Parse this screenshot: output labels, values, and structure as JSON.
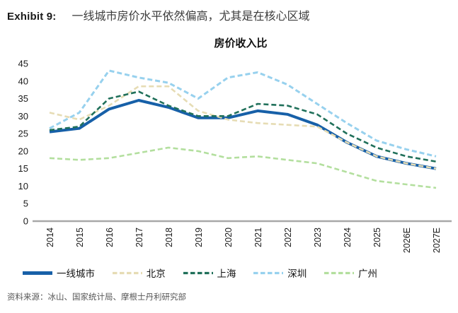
{
  "header": {
    "exhibit_label": "Exhibit 9:",
    "title": "一线城市房价水平依然偏高，尤其是在核心区域"
  },
  "source": "资料来源：冰山、国家统计局、摩根士丹利研究部",
  "chart_data": {
    "type": "line",
    "title": "房价收入比",
    "categories": [
      "2014",
      "2015",
      "2016",
      "2017",
      "2018",
      "2019",
      "2020",
      "2021",
      "2022",
      "2023",
      "2024",
      "2025",
      "2026E",
      "2027E"
    ],
    "series": [
      {
        "key": "tier1",
        "name": "一线城市",
        "color": "#1760a8",
        "style": "solid",
        "width": 4,
        "values": [
          25.5,
          26.5,
          32,
          34.5,
          32.5,
          29.5,
          29.5,
          31.5,
          30.5,
          27.5,
          22.5,
          18.5,
          16.5,
          15
        ]
      },
      {
        "key": "beijing",
        "name": "北京",
        "color": "#e6dcb4",
        "style": "dashed",
        "width": 2.6,
        "values": [
          31,
          29,
          33,
          38.5,
          38.5,
          31.5,
          29,
          28,
          27.5,
          27,
          22.5,
          18.5,
          16.5,
          15
        ]
      },
      {
        "key": "shanghai",
        "name": "上海",
        "color": "#20705a",
        "style": "dashed",
        "width": 2.6,
        "values": [
          26,
          27,
          35,
          37,
          33,
          30,
          30,
          33.5,
          33,
          30.5,
          25,
          21,
          18.5,
          17
        ]
      },
      {
        "key": "shenzhen",
        "name": "深圳",
        "color": "#97d1ee",
        "style": "dashed",
        "width": 3,
        "values": [
          26.5,
          31,
          43,
          41,
          39.5,
          35,
          41,
          42.5,
          39,
          33.5,
          28,
          23,
          20.5,
          18.5
        ]
      },
      {
        "key": "guangzhou",
        "name": "广州",
        "color": "#b3df9e",
        "style": "dashed",
        "width": 2.6,
        "values": [
          18,
          17.5,
          18,
          19.5,
          21,
          20,
          18,
          18.5,
          17.5,
          16.5,
          14,
          11.5,
          10.5,
          9.5
        ]
      }
    ],
    "ylim": [
      0,
      45
    ],
    "ytick_step": 5,
    "grid": false,
    "legend_position": "bottom",
    "axis_color": "#a8a8a8",
    "tick_label_color": "#1a1a1a"
  }
}
